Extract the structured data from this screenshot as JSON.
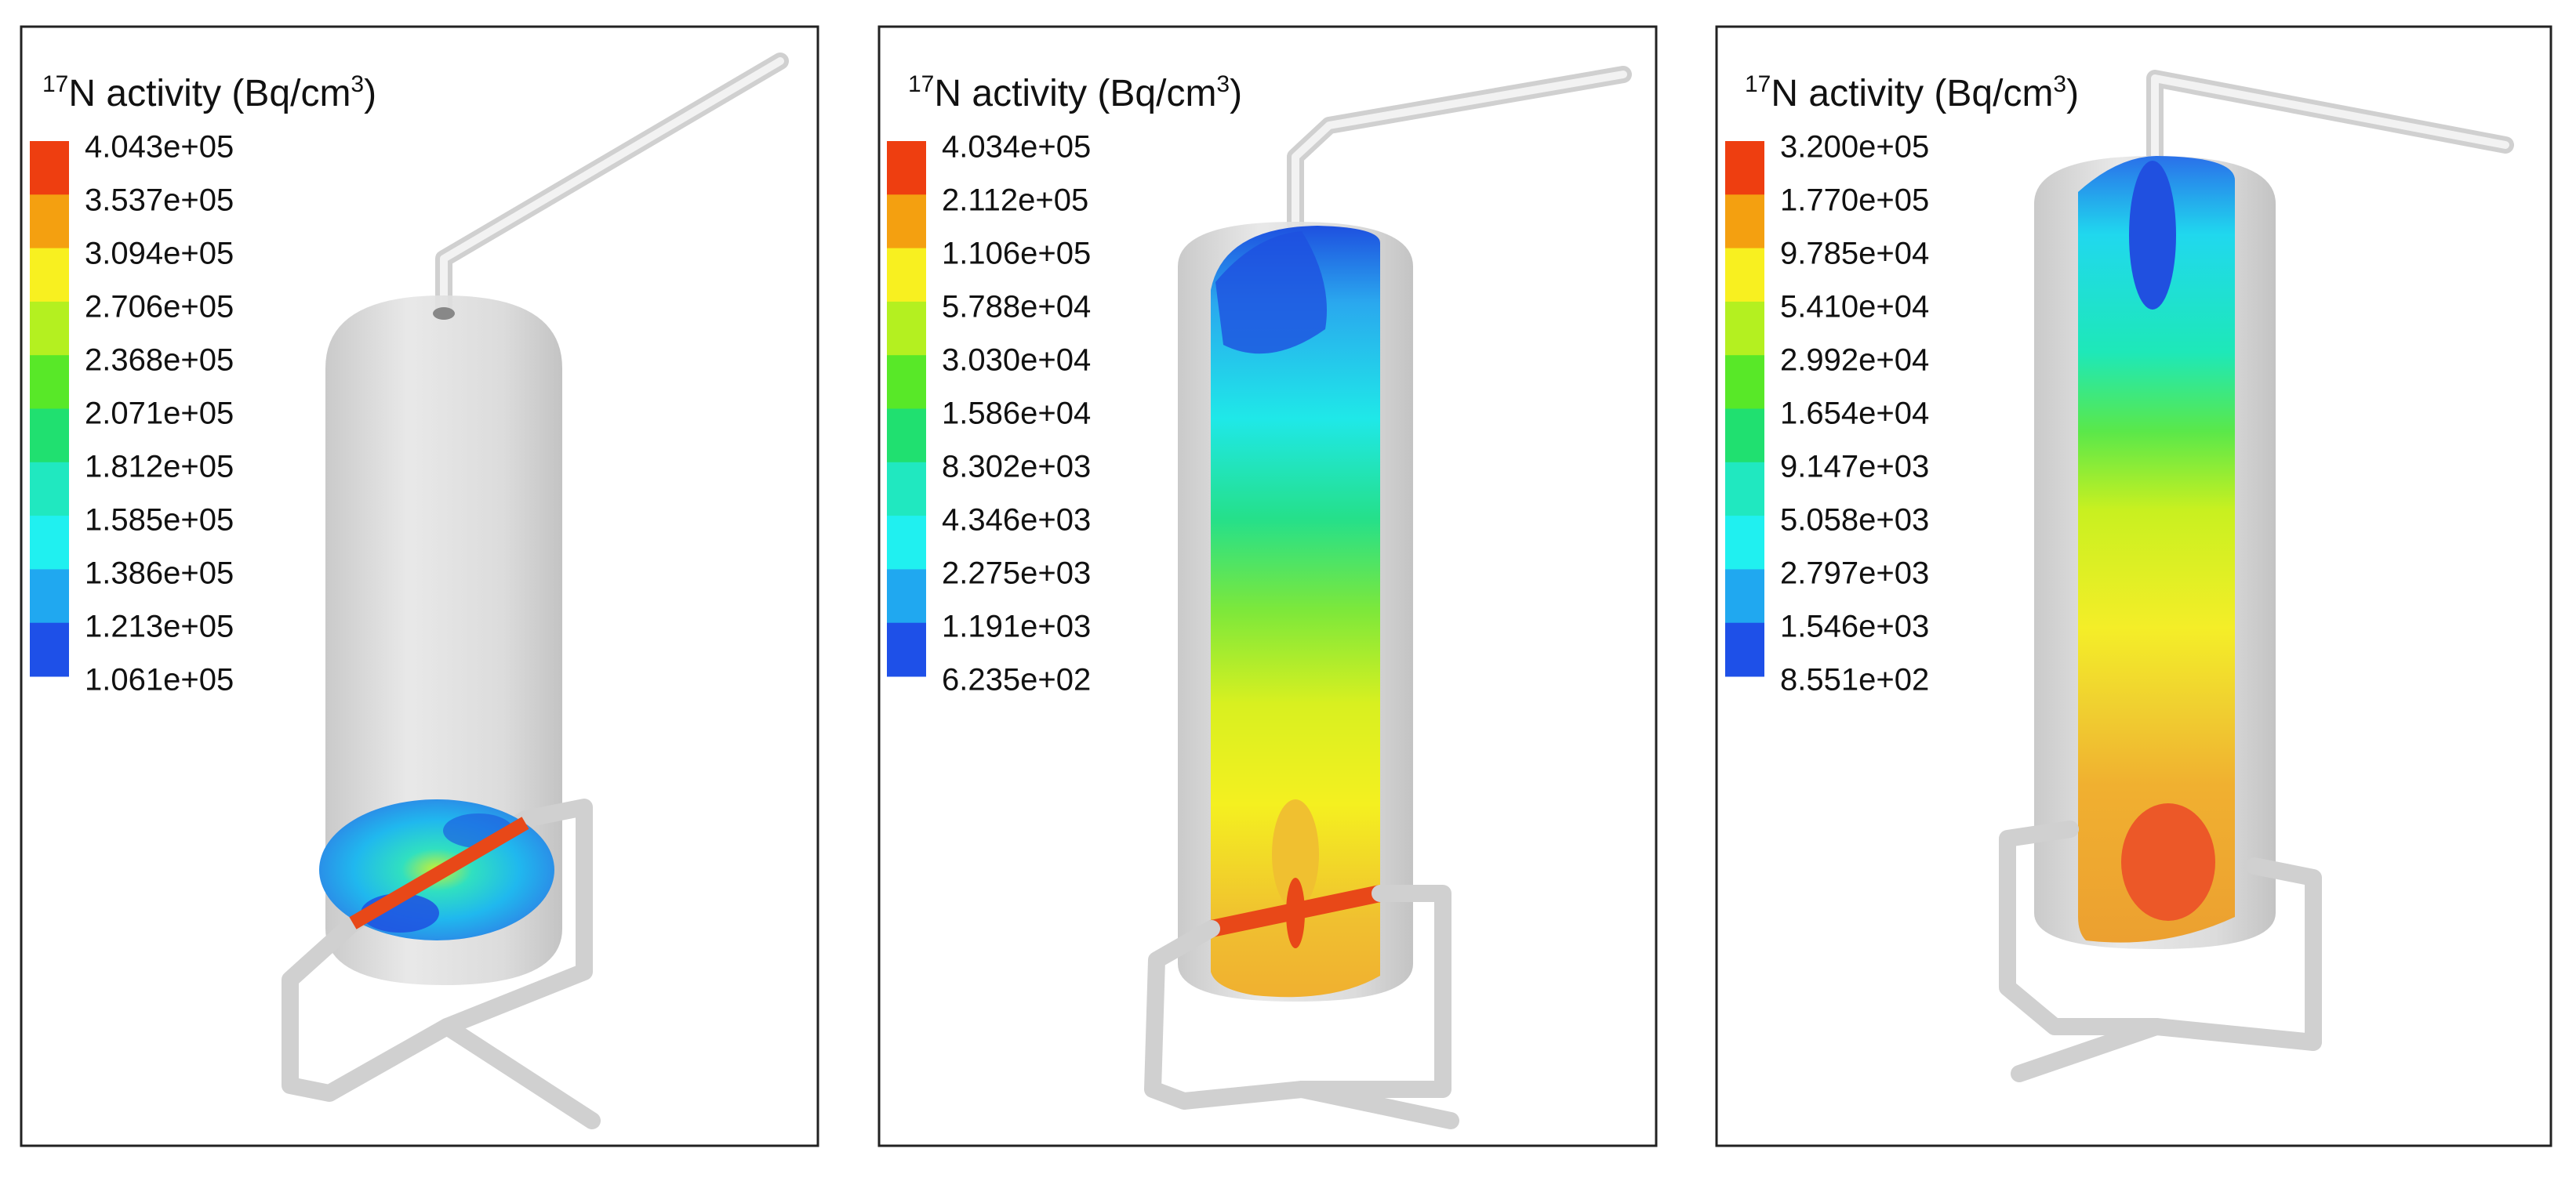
{
  "panels": [
    {
      "title": {
        "iso": "17",
        "before": "N activity (Bq/cm",
        "exp": "3",
        "after": ")"
      },
      "levels": [
        "4.043e+05",
        "3.537e+05",
        "3.094e+05",
        "2.706e+05",
        "2.368e+05",
        "2.071e+05",
        "1.812e+05",
        "1.585e+05",
        "1.386e+05",
        "1.213e+05",
        "1.061e+05"
      ]
    },
    {
      "title": {
        "iso": "17",
        "before": "N activity (Bq/cm",
        "exp": "3",
        "after": ")"
      },
      "levels": [
        "4.034e+05",
        "2.112e+05",
        "1.106e+05",
        "5.788e+04",
        "3.030e+04",
        "1.586e+04",
        "8.302e+03",
        "4.346e+03",
        "2.275e+03",
        "1.191e+03",
        "6.235e+02"
      ]
    },
    {
      "title": {
        "iso": "17",
        "before": "N activity (Bq/cm",
        "exp": "3",
        "after": ")"
      },
      "levels": [
        "3.200e+05",
        "1.770e+05",
        "9.785e+04",
        "5.410e+04",
        "2.992e+04",
        "1.654e+04",
        "9.147e+03",
        "5.058e+03",
        "2.797e+03",
        "1.546e+03",
        "8.551e+02"
      ]
    }
  ]
}
